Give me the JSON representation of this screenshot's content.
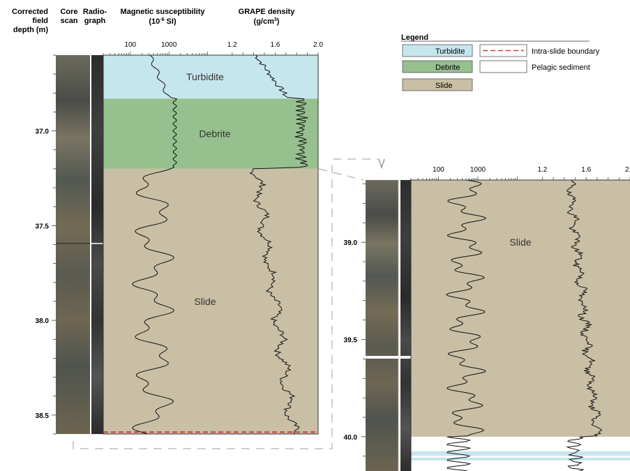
{
  "headers": {
    "depth": [
      "Corrected",
      "field",
      "depth (m)"
    ],
    "core": [
      "Core",
      "scan"
    ],
    "radio": [
      "Radio-",
      "graph"
    ],
    "mag": [
      "Magnetic susceptibility",
      "(10",
      "-6",
      " SI)"
    ],
    "grape": [
      "GRAPE density",
      "(g/cm",
      "3",
      ")"
    ]
  },
  "log_scale": {
    "labels": [
      "100",
      "1000"
    ],
    "values": [
      100,
      1000
    ],
    "range": [
      20,
      12000
    ]
  },
  "density_scale": {
    "labels": [
      "1.2",
      "1.6",
      "2.0"
    ],
    "values": [
      1.2,
      1.6,
      2.0
    ],
    "range": [
      1.0,
      2.0
    ]
  },
  "left_panel": {
    "depth_labels": [
      "37.0",
      "37.5",
      "38.0",
      "38.5"
    ],
    "depth_values": [
      37.0,
      37.5,
      38.0,
      38.5
    ],
    "depth_range": [
      36.6,
      38.6
    ],
    "zones": [
      {
        "name": "Turbidite",
        "from": 36.6,
        "to": 36.83,
        "color": "#c6e6ee"
      },
      {
        "name": "Debrite",
        "from": 36.83,
        "to": 37.2,
        "color": "#96c08e"
      },
      {
        "name": "Slide",
        "from": 37.2,
        "to": 38.6,
        "color": "#c9bfa4"
      }
    ],
    "intra_slide_boundary": 38.59
  },
  "right_panel": {
    "depth_labels": [
      "39.0",
      "39.5",
      "40.0"
    ],
    "depth_values": [
      39.0,
      39.5,
      40.0
    ],
    "depth_range": [
      38.68,
      40.18
    ],
    "zones": [
      {
        "name": "Slide",
        "from": 38.68,
        "to": 40.0,
        "color": "#c9bfa4"
      },
      {
        "name": "",
        "from": 40.075,
        "to": 40.098,
        "color": "#c6e6ee"
      },
      {
        "name": "",
        "from": 40.108,
        "to": 40.122,
        "color": "#c6e6ee"
      }
    ]
  },
  "legend": {
    "title": "Legend",
    "items": [
      {
        "label": "Turbidite",
        "color": "#c6e6ee"
      },
      {
        "label": "Debrite",
        "color": "#96c08e"
      },
      {
        "label": "Slide",
        "color": "#c9bfa4"
      },
      {
        "label": "Intra-slide boundary",
        "color": "#d0393c"
      },
      {
        "label": "Pelagic sediment",
        "color": "#ffffff"
      }
    ]
  },
  "colors": {
    "turbidite": "#c6e6ee",
    "debrite": "#96c08e",
    "slide": "#c9bfa4",
    "boundary": "#d0393c",
    "connector": "#bdbdbd"
  }
}
